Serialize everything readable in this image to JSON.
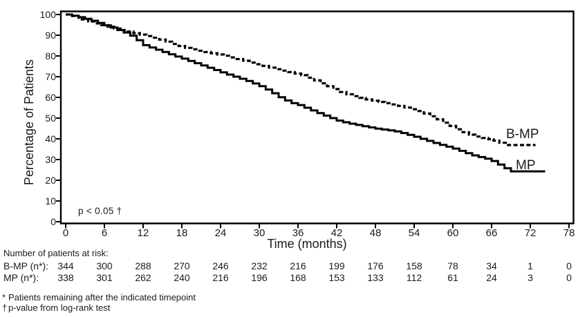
{
  "colors": {
    "foreground": "#000000",
    "background": "#ffffff",
    "text": "#1a1a1a"
  },
  "chart_data": {
    "type": "line",
    "variant": "kaplan_meier_step",
    "title": "",
    "xlabel": "Time (months)",
    "ylabel": "Percentage of Patients",
    "xlim": [
      0,
      78
    ],
    "ylim": [
      0,
      100
    ],
    "xticks": [
      0,
      6,
      12,
      18,
      24,
      30,
      36,
      42,
      48,
      54,
      60,
      66,
      72,
      78
    ],
    "yticks": [
      0,
      10,
      20,
      30,
      40,
      50,
      60,
      70,
      80,
      90,
      100
    ],
    "grid": false,
    "framed": true,
    "annotation": "p < 0.05 †",
    "legend_position": "labels-at-curve-ends",
    "series": [
      {
        "name": "B-MP",
        "line_style": "dashed",
        "color": "#000000",
        "points": [
          [
            0,
            100
          ],
          [
            1,
            99.3
          ],
          [
            2,
            98.4
          ],
          [
            2.5,
            97.6
          ],
          [
            3.5,
            96.6
          ],
          [
            4.5,
            95.7
          ],
          [
            5.5,
            94.9
          ],
          [
            6.5,
            94.1
          ],
          [
            7.5,
            93.2
          ],
          [
            8.5,
            92.5
          ],
          [
            9.5,
            91.8
          ],
          [
            10.5,
            91
          ],
          [
            11.5,
            90.3
          ],
          [
            12.5,
            89.6
          ],
          [
            13.5,
            88.8
          ],
          [
            14.5,
            87.9
          ],
          [
            15.5,
            86.9
          ],
          [
            16.5,
            85.8
          ],
          [
            17.5,
            84.8
          ],
          [
            18.5,
            83.9
          ],
          [
            19.5,
            83.2
          ],
          [
            20.5,
            82.5
          ],
          [
            21.5,
            81.9
          ],
          [
            22.5,
            81.3
          ],
          [
            23.5,
            80.7
          ],
          [
            24.5,
            80.1
          ],
          [
            25.5,
            79.3
          ],
          [
            26.5,
            78.5
          ],
          [
            27.5,
            77.7
          ],
          [
            28.5,
            76.8
          ],
          [
            29.5,
            76
          ],
          [
            30.5,
            75.2
          ],
          [
            31.5,
            74.4
          ],
          [
            32.5,
            73.6
          ],
          [
            33.5,
            72.9
          ],
          [
            34.5,
            72.2
          ],
          [
            35.5,
            71.5
          ],
          [
            36.5,
            70.7
          ],
          [
            37.5,
            69.5
          ],
          [
            38.5,
            68.2
          ],
          [
            39.5,
            66.8
          ],
          [
            40.5,
            65.4
          ],
          [
            41.5,
            64
          ],
          [
            42.5,
            62.6
          ],
          [
            43.5,
            61.5
          ],
          [
            44.5,
            60.6
          ],
          [
            45.5,
            59.8
          ],
          [
            46.5,
            59
          ],
          [
            47.5,
            58.4
          ],
          [
            48.5,
            57.8
          ],
          [
            49.5,
            57.2
          ],
          [
            50.5,
            56.6
          ],
          [
            51.5,
            55.9
          ],
          [
            52.5,
            55.1
          ],
          [
            53.5,
            54.3
          ],
          [
            54.5,
            53.4
          ],
          [
            55.5,
            52.2
          ],
          [
            56.5,
            50.9
          ],
          [
            57.5,
            49.4
          ],
          [
            58.5,
            47.8
          ],
          [
            59.5,
            46.2
          ],
          [
            60.5,
            44.6
          ],
          [
            61.5,
            43.2
          ],
          [
            62.5,
            42
          ],
          [
            63.5,
            41.1
          ],
          [
            64.5,
            40.4
          ],
          [
            65.5,
            39.8
          ],
          [
            66.3,
            39.1
          ],
          [
            67.2,
            38.1
          ],
          [
            68.2,
            37
          ],
          [
            72.8,
            37
          ]
        ]
      },
      {
        "name": "MP",
        "line_style": "solid",
        "color": "#000000",
        "points": [
          [
            0,
            100
          ],
          [
            1,
            99.4
          ],
          [
            2,
            98.7
          ],
          [
            3,
            97.9
          ],
          [
            4,
            97
          ],
          [
            5,
            95.9
          ],
          [
            6,
            94.8
          ],
          [
            7,
            93.7
          ],
          [
            8,
            92.5
          ],
          [
            9,
            91.3
          ],
          [
            10,
            89.8
          ],
          [
            11,
            87.6
          ],
          [
            12,
            85.2
          ],
          [
            13,
            84.1
          ],
          [
            14,
            83
          ],
          [
            15,
            81.9
          ],
          [
            16,
            80.8
          ],
          [
            17,
            79.7
          ],
          [
            18,
            78.7
          ],
          [
            19,
            77.6
          ],
          [
            20,
            76.5
          ],
          [
            21,
            75.4
          ],
          [
            22,
            74.3
          ],
          [
            23,
            73.2
          ],
          [
            24,
            72.1
          ],
          [
            25,
            71
          ],
          [
            26,
            70
          ],
          [
            27,
            69
          ],
          [
            28,
            67.9
          ],
          [
            29,
            66.7
          ],
          [
            30,
            65.4
          ],
          [
            31,
            63.8
          ],
          [
            32,
            62
          ],
          [
            33,
            60.1
          ],
          [
            34,
            58.5
          ],
          [
            35,
            57.2
          ],
          [
            36,
            56.3
          ],
          [
            37,
            55
          ],
          [
            38,
            53.7
          ],
          [
            39,
            52.4
          ],
          [
            40,
            51.2
          ],
          [
            41,
            50
          ],
          [
            42,
            48.8
          ],
          [
            43,
            48
          ],
          [
            44,
            47.3
          ],
          [
            45,
            46.7
          ],
          [
            46,
            46.1
          ],
          [
            47,
            45.5
          ],
          [
            48,
            44.9
          ],
          [
            49,
            44.5
          ],
          [
            50,
            44.1
          ],
          [
            51,
            43.6
          ],
          [
            52,
            42.8
          ],
          [
            53,
            41.9
          ],
          [
            54,
            41
          ],
          [
            55,
            40
          ],
          [
            56,
            39
          ],
          [
            57,
            38
          ],
          [
            58,
            37.1
          ],
          [
            59,
            36.2
          ],
          [
            60,
            35.3
          ],
          [
            61,
            34.2
          ],
          [
            62,
            33.1
          ],
          [
            63,
            32
          ],
          [
            64,
            31.2
          ],
          [
            65,
            30.4
          ],
          [
            66,
            29.3
          ],
          [
            67,
            27.6
          ],
          [
            68,
            25.8
          ],
          [
            69,
            24.3
          ],
          [
            74.3,
            24.3
          ]
        ]
      }
    ],
    "risk_table": {
      "title": "Number of patients at risk:",
      "timepoints": [
        0,
        6,
        12,
        18,
        24,
        30,
        36,
        42,
        48,
        54,
        60,
        66,
        72,
        78
      ],
      "rows": [
        {
          "label": "B-MP (n*):",
          "values": [
            344,
            300,
            288,
            270,
            246,
            232,
            216,
            199,
            176,
            158,
            78,
            34,
            1,
            0
          ]
        },
        {
          "label": "MP (n*):",
          "values": [
            338,
            301,
            262,
            240,
            216,
            196,
            168,
            153,
            133,
            112,
            61,
            24,
            3,
            0
          ]
        }
      ]
    },
    "footnotes": [
      {
        "marker": "*",
        "text": "Patients remaining after the indicated timepoint"
      },
      {
        "marker": "†",
        "text": "p-value from log-rank test"
      }
    ]
  }
}
